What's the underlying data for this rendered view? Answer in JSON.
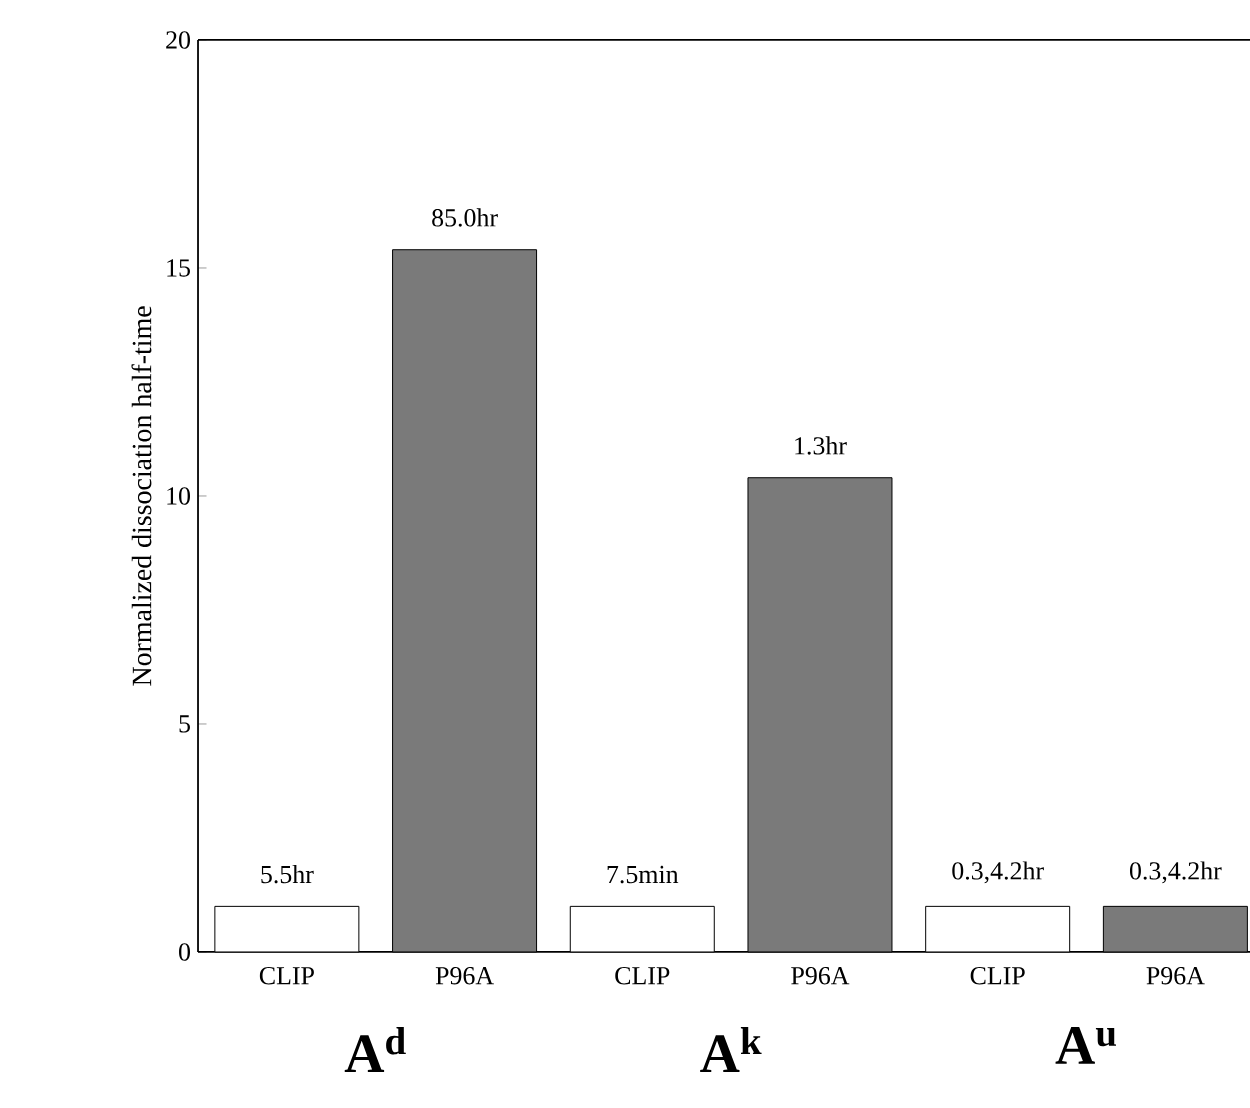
{
  "chart_data": {
    "type": "bar",
    "categories": [
      "CLIP",
      "P96A",
      "CLIP",
      "P96A",
      "CLIP",
      "P96A"
    ],
    "values": [
      1,
      15.4,
      1,
      10.4,
      1,
      1
    ],
    "colors": [
      "#ffffff",
      "#7a7a7a",
      "#ffffff",
      "#7a7a7a",
      "#ffffff",
      "#7a7a7a"
    ],
    "ylabel": "Normalized dissociation half-time",
    "annotations": [
      "5.5hr",
      "85.0hr",
      "7.5min",
      "1.3hr",
      "0.3,4.2hr",
      "0.3,4.2hr",
      "A$^{d}$",
      "A$^{k}$",
      "A$^{u}$"
    ],
    "ylim": [
      0,
      20
    ],
    "yticks": [
      0,
      5,
      10,
      15,
      20
    ],
    "grid": false
  }
}
